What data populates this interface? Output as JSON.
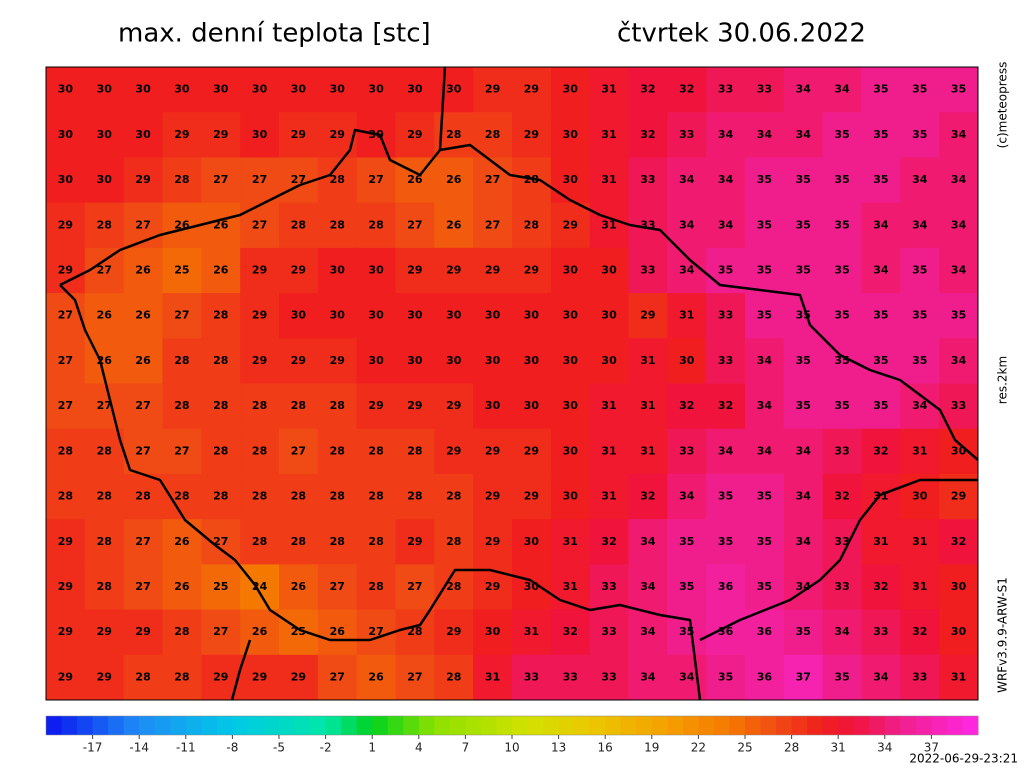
{
  "map": {
    "title": "max. denní teplota [stc]",
    "date": "čtvrtek 30.06.2022",
    "credit": "(c)meteopress",
    "resolution": "res.2km",
    "model": "WRFv3.9.9-ARW-S1",
    "timestamp": "2022-06-29-23:21",
    "grid": [
      [
        30,
        30,
        30,
        30,
        30,
        30,
        30,
        30,
        30,
        30,
        30,
        29,
        29,
        30,
        31,
        32,
        32,
        33,
        33,
        34,
        34,
        35,
        35,
        35
      ],
      [
        30,
        30,
        30,
        29,
        29,
        30,
        29,
        29,
        30,
        29,
        28,
        28,
        29,
        30,
        31,
        32,
        33,
        34,
        34,
        34,
        35,
        35,
        35,
        34
      ],
      [
        30,
        30,
        29,
        28,
        27,
        27,
        27,
        28,
        27,
        26,
        26,
        27,
        28,
        30,
        31,
        33,
        34,
        34,
        35,
        35,
        35,
        35,
        34,
        34
      ],
      [
        29,
        28,
        27,
        26,
        26,
        27,
        28,
        28,
        28,
        27,
        26,
        27,
        28,
        29,
        31,
        33,
        34,
        34,
        35,
        35,
        35,
        34,
        34,
        34
      ],
      [
        29,
        27,
        26,
        25,
        26,
        29,
        29,
        30,
        30,
        29,
        29,
        29,
        29,
        30,
        30,
        33,
        34,
        35,
        35,
        35,
        35,
        34,
        35,
        34
      ],
      [
        27,
        26,
        26,
        27,
        28,
        29,
        30,
        30,
        30,
        30,
        30,
        30,
        30,
        30,
        30,
        29,
        31,
        33,
        35,
        35,
        35,
        35,
        35,
        35
      ],
      [
        27,
        26,
        26,
        28,
        28,
        29,
        29,
        29,
        30,
        30,
        30,
        30,
        30,
        30,
        30,
        31,
        30,
        33,
        34,
        35,
        35,
        35,
        35,
        34
      ],
      [
        27,
        27,
        27,
        28,
        28,
        28,
        28,
        28,
        29,
        29,
        29,
        30,
        30,
        30,
        31,
        31,
        32,
        32,
        34,
        35,
        35,
        35,
        34,
        33
      ],
      [
        28,
        28,
        27,
        27,
        28,
        28,
        27,
        28,
        28,
        28,
        29,
        29,
        29,
        30,
        31,
        31,
        33,
        34,
        34,
        34,
        33,
        32,
        31,
        30
      ],
      [
        28,
        28,
        28,
        28,
        28,
        28,
        28,
        28,
        28,
        28,
        28,
        29,
        29,
        30,
        31,
        32,
        34,
        35,
        35,
        34,
        32,
        31,
        30,
        29
      ],
      [
        29,
        28,
        27,
        26,
        27,
        28,
        28,
        28,
        28,
        29,
        28,
        29,
        30,
        31,
        32,
        34,
        35,
        35,
        35,
        34,
        33,
        31,
        31,
        32
      ],
      [
        29,
        28,
        27,
        26,
        25,
        24,
        26,
        27,
        28,
        27,
        28,
        29,
        30,
        31,
        33,
        34,
        35,
        36,
        35,
        34,
        33,
        32,
        31,
        30
      ],
      [
        29,
        29,
        29,
        28,
        27,
        26,
        25,
        26,
        27,
        28,
        29,
        30,
        31,
        32,
        33,
        34,
        35,
        36,
        36,
        35,
        34,
        33,
        32,
        30
      ],
      [
        29,
        29,
        28,
        28,
        29,
        29,
        29,
        27,
        26,
        27,
        28,
        31,
        33,
        33,
        33,
        34,
        34,
        35,
        36,
        37,
        35,
        34,
        33,
        31
      ]
    ],
    "colorbar": {
      "lim": [
        -20,
        40
      ],
      "ticks": [
        -17,
        -14,
        -11,
        -8,
        -5,
        -2,
        1,
        4,
        7,
        10,
        13,
        16,
        19,
        22,
        25,
        28,
        31,
        34,
        37
      ],
      "stops": [
        {
          "value": -20,
          "color": "#0a14f0"
        },
        {
          "value": -14,
          "color": "#1e8cf5"
        },
        {
          "value": -8,
          "color": "#00c8e8"
        },
        {
          "value": -2,
          "color": "#00e6a8"
        },
        {
          "value": 1,
          "color": "#00d21e"
        },
        {
          "value": 5,
          "color": "#8ce100"
        },
        {
          "value": 11,
          "color": "#d2e100"
        },
        {
          "value": 15,
          "color": "#ebc800"
        },
        {
          "value": 20,
          "color": "#f5a000"
        },
        {
          "value": 24,
          "color": "#f57800"
        },
        {
          "value": 27,
          "color": "#f04b14"
        },
        {
          "value": 30,
          "color": "#f01e1e"
        },
        {
          "value": 32,
          "color": "#f0143c"
        },
        {
          "value": 35,
          "color": "#f01e8c"
        },
        {
          "value": 40,
          "color": "#ff28e6"
        }
      ]
    }
  }
}
